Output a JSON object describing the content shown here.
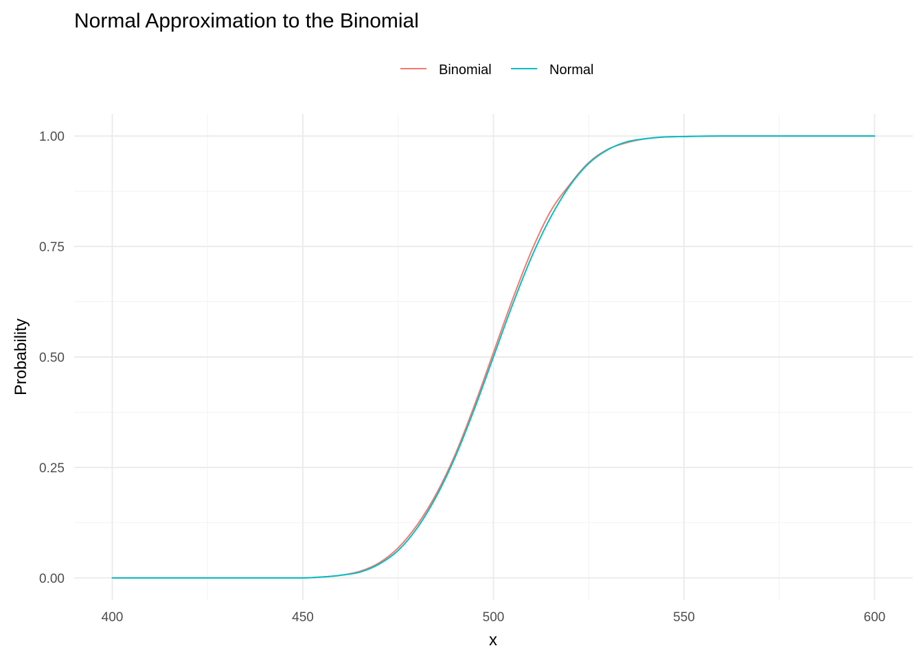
{
  "chart_data": {
    "type": "line",
    "title": "Normal Approximation to the Binomial",
    "xlabel": "x",
    "ylabel": "Probability",
    "xlim": [
      390,
      610
    ],
    "ylim": [
      -0.05,
      1.05
    ],
    "x_ticks": [
      400,
      450,
      500,
      550,
      600
    ],
    "x_tick_labels": [
      "400",
      "450",
      "500",
      "550",
      "600"
    ],
    "y_ticks": [
      0,
      0.25,
      0.5,
      0.75,
      1
    ],
    "y_tick_labels": [
      "0.00",
      "0.25",
      "0.50",
      "0.75",
      "1.00"
    ],
    "grid": true,
    "legend_position": "top",
    "series": [
      {
        "name": "Binomial",
        "color": "#F8766D",
        "x": [
          400,
          420,
          440,
          450,
          455,
          460,
          465,
          470,
          475,
          480,
          485,
          490,
          495,
          500,
          505,
          510,
          515,
          520,
          525,
          530,
          535,
          540,
          545,
          550,
          560,
          580,
          600
        ],
        "y": [
          0.0,
          0.0,
          0.0,
          0.0,
          0.002,
          0.006,
          0.015,
          0.034,
          0.068,
          0.12,
          0.19,
          0.28,
          0.39,
          0.51,
          0.63,
          0.74,
          0.83,
          0.89,
          0.94,
          0.97,
          0.985,
          0.994,
          0.998,
          0.999,
          1.0,
          1.0,
          1.0
        ]
      },
      {
        "name": "Normal",
        "color": "#00BFC4",
        "x": [
          400,
          420,
          440,
          450,
          455,
          460,
          465,
          470,
          475,
          480,
          485,
          490,
          495,
          500,
          505,
          510,
          515,
          520,
          525,
          530,
          535,
          540,
          545,
          550,
          560,
          580,
          600
        ],
        "y": [
          0.0,
          0.0,
          0.0,
          0.0,
          0.002,
          0.006,
          0.013,
          0.031,
          0.062,
          0.113,
          0.184,
          0.274,
          0.382,
          0.5,
          0.618,
          0.726,
          0.816,
          0.887,
          0.938,
          0.969,
          0.987,
          0.994,
          0.998,
          0.999,
          1.0,
          1.0,
          1.0
        ]
      }
    ]
  }
}
